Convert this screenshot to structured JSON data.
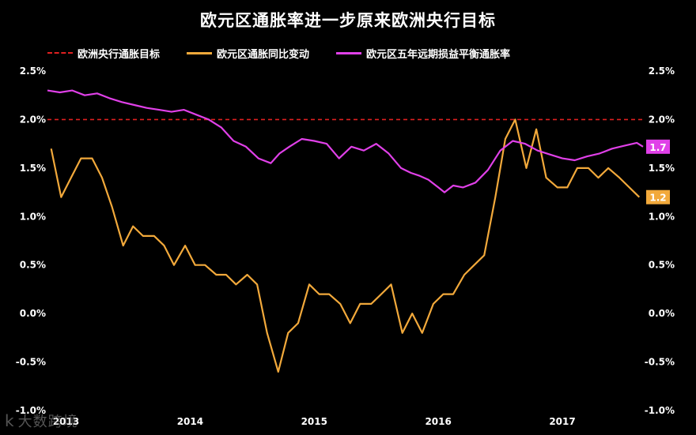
{
  "chart_data": {
    "type": "line",
    "title": "欧元区通胀率进一步原来欧洲央行目标",
    "xlabel": "",
    "ylabel": "",
    "ylim": [
      -1.0,
      2.5
    ],
    "x_ticks": [
      "2013",
      "2014",
      "2015",
      "2016",
      "2017"
    ],
    "y_ticks": [
      "2.5%",
      "2.0%",
      "1.5%",
      "1.0%",
      "0.5%",
      "0.0%",
      "-0.5%",
      "-1.0%"
    ],
    "y_tick_values": [
      2.5,
      2.0,
      1.5,
      1.0,
      0.5,
      0.0,
      -0.5,
      -1.0
    ],
    "grid": false,
    "legend_position": "top",
    "series": [
      {
        "name": "欧洲央行通胀目标",
        "color": "#e02020",
        "style": "dashed",
        "x": [
          2012.85,
          2017.65
        ],
        "values": [
          2.0,
          2.0
        ]
      },
      {
        "name": "欧元区通胀同比变动",
        "color": "#f2a93b",
        "style": "solid",
        "end_label": "1.2",
        "x": [
          2012.88,
          2012.96,
          2013.04,
          2013.12,
          2013.21,
          2013.29,
          2013.37,
          2013.46,
          2013.54,
          2013.62,
          2013.71,
          2013.79,
          2013.87,
          2013.96,
          2014.04,
          2014.12,
          2014.21,
          2014.29,
          2014.37,
          2014.46,
          2014.54,
          2014.62,
          2014.71,
          2014.79,
          2014.87,
          2014.96,
          2015.04,
          2015.12,
          2015.21,
          2015.29,
          2015.37,
          2015.46,
          2015.54,
          2015.62,
          2015.71,
          2015.79,
          2015.87,
          2015.96,
          2016.04,
          2016.12,
          2016.21,
          2016.29,
          2016.37,
          2016.46,
          2016.54,
          2016.62,
          2016.71,
          2016.79,
          2016.87,
          2016.96,
          2017.04,
          2017.12,
          2017.21,
          2017.29,
          2017.37,
          2017.46,
          2017.54,
          2017.62
        ],
        "values": [
          1.7,
          1.2,
          1.4,
          1.6,
          1.6,
          1.4,
          1.1,
          0.7,
          0.9,
          0.8,
          0.8,
          0.7,
          0.5,
          0.7,
          0.5,
          0.5,
          0.4,
          0.4,
          0.3,
          0.4,
          0.3,
          -0.2,
          -0.6,
          -0.2,
          -0.1,
          0.3,
          0.2,
          0.2,
          0.1,
          -0.1,
          0.1,
          0.1,
          0.2,
          0.3,
          -0.2,
          0.0,
          -0.2,
          0.1,
          0.2,
          0.2,
          0.4,
          0.5,
          0.6,
          1.2,
          1.8,
          2.0,
          1.5,
          1.9,
          1.4,
          1.3,
          1.3,
          1.5,
          1.5,
          1.4,
          1.5,
          1.4,
          1.3,
          1.2
        ]
      },
      {
        "name": "欧元区五年远期损益平衡通胀率",
        "color": "#e040e8",
        "style": "solid",
        "end_label": "1.7",
        "x": [
          2012.85,
          2012.95,
          2013.05,
          2013.15,
          2013.25,
          2013.35,
          2013.45,
          2013.55,
          2013.65,
          2013.75,
          2013.85,
          2013.95,
          2014.05,
          2014.15,
          2014.25,
          2014.35,
          2014.45,
          2014.55,
          2014.65,
          2014.72,
          2014.8,
          2014.9,
          2015.0,
          2015.1,
          2015.2,
          2015.3,
          2015.4,
          2015.5,
          2015.6,
          2015.7,
          2015.78,
          2015.85,
          2015.92,
          2016.0,
          2016.05,
          2016.12,
          2016.2,
          2016.3,
          2016.4,
          2016.5,
          2016.6,
          2016.7,
          2016.8,
          2016.9,
          2017.0,
          2017.1,
          2017.2,
          2017.3,
          2017.4,
          2017.5,
          2017.6,
          2017.65
        ],
        "values": [
          2.3,
          2.28,
          2.3,
          2.25,
          2.27,
          2.22,
          2.18,
          2.15,
          2.12,
          2.1,
          2.08,
          2.1,
          2.05,
          2.0,
          1.92,
          1.78,
          1.72,
          1.6,
          1.55,
          1.65,
          1.72,
          1.8,
          1.78,
          1.75,
          1.6,
          1.72,
          1.68,
          1.75,
          1.65,
          1.5,
          1.45,
          1.42,
          1.38,
          1.3,
          1.25,
          1.32,
          1.3,
          1.35,
          1.48,
          1.68,
          1.78,
          1.75,
          1.68,
          1.64,
          1.6,
          1.58,
          1.62,
          1.65,
          1.7,
          1.73,
          1.76,
          1.72
        ]
      }
    ]
  },
  "watermark": {
    "logo": "k",
    "text": "大数跨境"
  }
}
